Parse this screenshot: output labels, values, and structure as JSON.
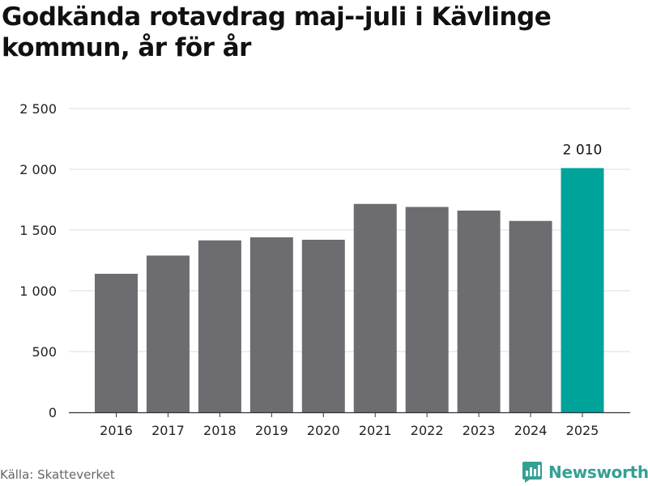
{
  "title": "Godkända rotavdrag maj--juli i Kävlinge kommun, år för år",
  "source": "Källa: Skatteverket",
  "brand": {
    "name": "Newsworthy",
    "icon": "newsworthy-logo-icon",
    "color": "#34a094"
  },
  "colors": {
    "bar": "#6d6c71",
    "highlight": "#00a39a",
    "grid": "#dddddd",
    "axis": "#333333"
  },
  "chart_data": {
    "type": "bar",
    "title": "Godkända rotavdrag maj--juli i Kävlinge kommun, år för år",
    "xlabel": "",
    "ylabel": "",
    "categories": [
      "2016",
      "2017",
      "2018",
      "2019",
      "2020",
      "2021",
      "2022",
      "2023",
      "2024",
      "2025"
    ],
    "values": [
      1140,
      1290,
      1415,
      1440,
      1420,
      1715,
      1690,
      1660,
      1575,
      2010
    ],
    "highlight_index": 9,
    "highlight_label": "2 010",
    "ylim": [
      0,
      2500
    ],
    "yticks": [
      0,
      500,
      1000,
      1500,
      2000,
      2500
    ],
    "ytick_labels": [
      "0",
      "500",
      "1 000",
      "1 500",
      "2 000",
      "2 500"
    ],
    "grid": true,
    "legend": "none"
  }
}
